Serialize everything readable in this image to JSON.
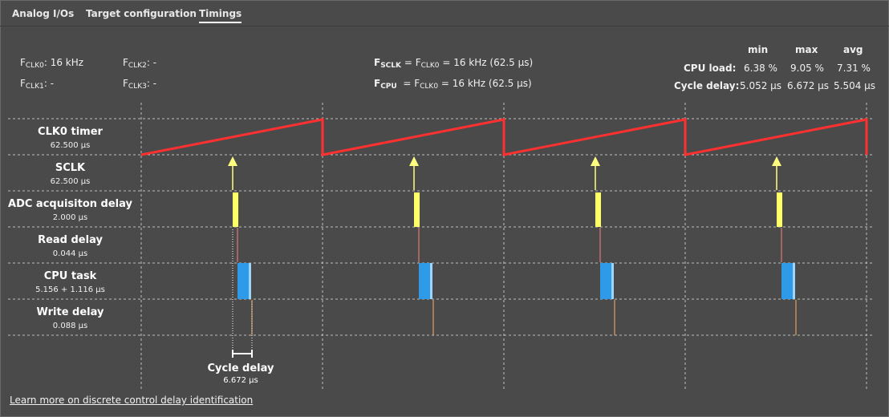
{
  "tabs": [
    {
      "label": "Analog I/Os"
    },
    {
      "label": "Target configuration"
    },
    {
      "label": "Timings",
      "active": true
    }
  ],
  "clocks": {
    "clk0": {
      "sym": "F",
      "sub": "CLK0",
      "value": ": 16 kHz"
    },
    "clk1": {
      "sym": "F",
      "sub": "CLK1",
      "value": ": -"
    },
    "clk2": {
      "sym": "F",
      "sub": "CLK2",
      "value": ": -"
    },
    "clk3": {
      "sym": "F",
      "sub": "CLK3",
      "value": ": -"
    }
  },
  "formulas": {
    "fsclk": {
      "sym": "F",
      "sub": "SCLK",
      "eq": " = ",
      "rsym": "F",
      "rsub": "CLK0",
      "rest": " = 16 kHz (62.5 µs)"
    },
    "fcpu": {
      "sym": "F",
      "sub": "CPU",
      "eq": "  = ",
      "rsym": "F",
      "rsub": "CLK0",
      "rest": " = 16 kHz (62.5 µs)"
    }
  },
  "stats": {
    "headers": {
      "min": "min",
      "max": "max",
      "avg": "avg"
    },
    "cpu_load": {
      "label": "CPU load:",
      "min": "6.38 %",
      "max": "9.05 %",
      "avg": "7.31 %"
    },
    "cycle_delay": {
      "label": "Cycle delay:",
      "min": "5.052 µs",
      "max": "6.672 µs",
      "avg": "5.504 µs"
    }
  },
  "rows": [
    {
      "name": "CLK0 timer",
      "value": "62.500 µs"
    },
    {
      "name": "SCLK",
      "value": "62.500 µs"
    },
    {
      "name": "ADC acquisiton delay",
      "value": "2.000 µs"
    },
    {
      "name": "Read delay",
      "value": "0.044 µs"
    },
    {
      "name": "CPU task",
      "value": "5.156 + 1.116 µs"
    },
    {
      "name": "Write delay",
      "value": "0.088 µs"
    }
  ],
  "cycle_delay_marker": {
    "name": "Cycle delay",
    "value": "6.672 µs"
  },
  "learn_more": {
    "label": "Learn more on discrete control delay identification"
  },
  "colors": {
    "clk_sawtooth": "#ff3030",
    "sclk_arrow": "#ffff80",
    "adc": "#ffff66",
    "read": "#ff8080",
    "cpu": "#2f9be8",
    "cpu_extra": "#9cd6ff",
    "write": "#ffb060",
    "grid": "#bfbfbf"
  }
}
